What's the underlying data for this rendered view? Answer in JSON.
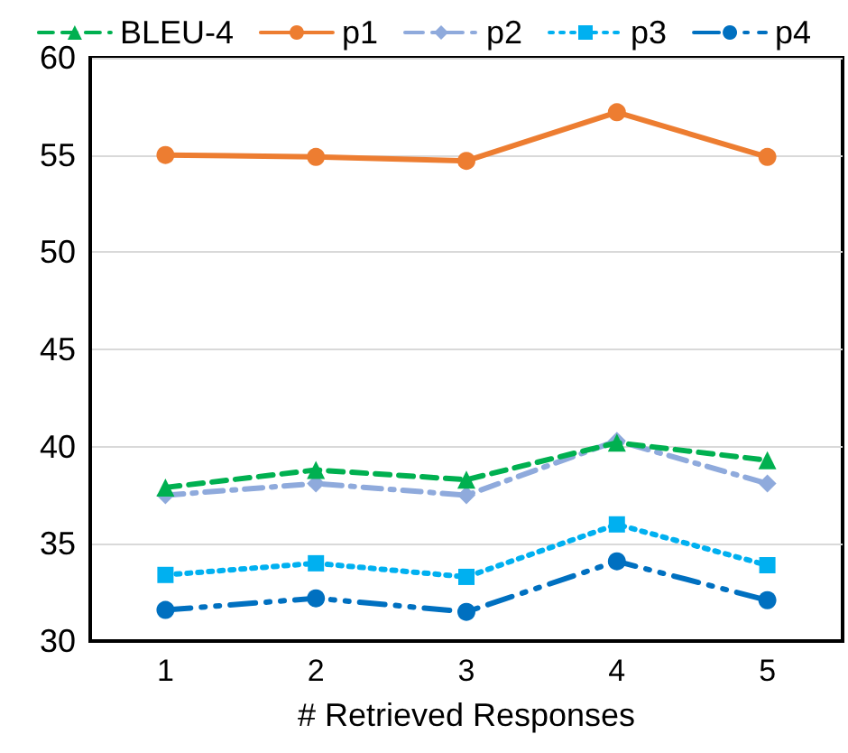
{
  "chart_data": {
    "type": "line",
    "xlabel": "# Retrieved Responses",
    "categories": [
      "1",
      "2",
      "3",
      "4",
      "5"
    ],
    "series": [
      {
        "name": "BLEU-4",
        "color": "#00b050",
        "marker": "triangle",
        "line_style": "dashed",
        "values": [
          37.9,
          38.8,
          38.3,
          40.2,
          39.3
        ]
      },
      {
        "name": "p1",
        "color": "#ed7d31",
        "marker": "circle",
        "line_style": "solid",
        "values": [
          55.0,
          54.9,
          54.7,
          57.2,
          54.9
        ]
      },
      {
        "name": "p2",
        "color": "#8faadc",
        "marker": "diamond",
        "line_style": "dashdot",
        "values": [
          37.5,
          38.1,
          37.5,
          40.3,
          38.1
        ]
      },
      {
        "name": "p3",
        "color": "#00b0f0",
        "marker": "square",
        "line_style": "dotted",
        "values": [
          33.4,
          34.0,
          33.3,
          36.0,
          33.9
        ]
      },
      {
        "name": "p4",
        "color": "#0070c0",
        "marker": "circle",
        "line_style": "longdashdot",
        "values": [
          31.6,
          32.2,
          31.5,
          34.1,
          32.1
        ]
      }
    ],
    "ylim": [
      30,
      60
    ],
    "yticks": [
      30,
      35,
      40,
      45,
      50,
      55,
      60
    ],
    "grid": "y",
    "legend": "top"
  }
}
